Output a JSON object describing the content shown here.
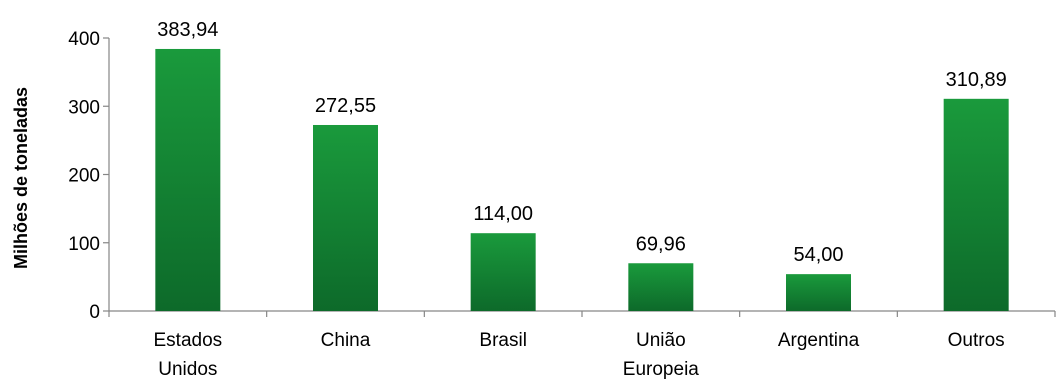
{
  "chart_data": {
    "type": "bar",
    "title": "",
    "xlabel": "",
    "ylabel": "Milhões de toneladas",
    "categories": [
      [
        "Estados",
        "Unidos"
      ],
      [
        "China"
      ],
      [
        "Brasil"
      ],
      [
        "União",
        "Europeia"
      ],
      [
        "Argentina"
      ],
      [
        "Outros"
      ]
    ],
    "values": [
      383.94,
      272.55,
      114.0,
      69.96,
      54.0,
      310.89
    ],
    "data_labels": [
      "383,94",
      "272,55",
      "114,00",
      "69,96",
      "54,00",
      "310,89"
    ],
    "ylim": [
      0,
      400
    ],
    "yticks": [
      0,
      100,
      200,
      300,
      400
    ],
    "grid": false,
    "legend": "none",
    "colors": {
      "bar_top": "#1a9a3c",
      "bar_bottom": "#0d6a2a",
      "axis": "#868686"
    }
  }
}
